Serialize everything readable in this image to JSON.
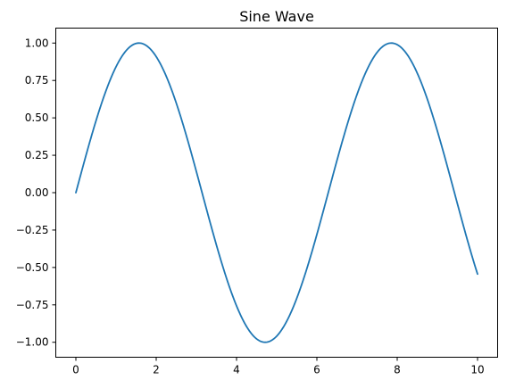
{
  "chart_data": {
    "type": "line",
    "title": "Sine Wave",
    "xlabel": "",
    "ylabel": "",
    "xlim": [
      -0.5,
      10.5
    ],
    "ylim": [
      -1.1,
      1.1
    ],
    "x_ticks": [
      0,
      2,
      4,
      6,
      8,
      10
    ],
    "x_tick_labels": [
      "0",
      "2",
      "4",
      "6",
      "8",
      "10"
    ],
    "y_ticks": [
      1.0,
      0.75,
      0.5,
      0.25,
      0.0,
      -0.25,
      -0.5,
      -0.75,
      -1.0
    ],
    "y_tick_labels": [
      "1.00",
      "0.75",
      "0.50",
      "0.25",
      "0.00",
      "−0.25",
      "−0.50",
      "−0.75",
      "−1.00"
    ],
    "grid": false,
    "series": [
      {
        "function": "sin(x)",
        "x_range": [
          0,
          10
        ],
        "color": "#1f77b4",
        "x": [
          0,
          0.5,
          1.0,
          1.5708,
          2.0,
          2.5,
          3.0,
          3.1416,
          3.5,
          4.0,
          4.7124,
          5.0,
          5.5,
          6.0,
          6.2832,
          6.5,
          7.0,
          7.5,
          7.854,
          8.0,
          8.5,
          9.0,
          9.4248,
          9.5,
          10.0
        ],
        "y": [
          0.0,
          0.479,
          0.841,
          1.0,
          0.909,
          0.598,
          0.141,
          0.0,
          -0.351,
          -0.757,
          -1.0,
          -0.959,
          -0.706,
          -0.279,
          0.0,
          0.215,
          0.657,
          0.938,
          1.0,
          0.989,
          0.798,
          0.412,
          0.0,
          -0.075,
          -0.544
        ]
      }
    ]
  }
}
